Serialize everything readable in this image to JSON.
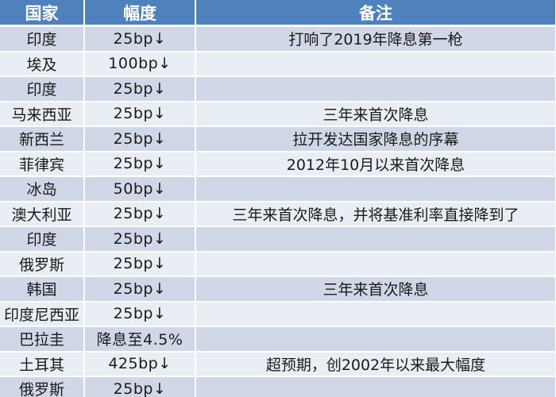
{
  "table": {
    "headers": {
      "country": "国家",
      "range": "幅度",
      "note": "备注"
    },
    "rows": [
      {
        "country": "印度",
        "range": "25bp↓",
        "note": "打响了2019年降息第一枪"
      },
      {
        "country": "埃及",
        "range": "100bp↓",
        "note": ""
      },
      {
        "country": "印度",
        "range": "25bp↓",
        "note": ""
      },
      {
        "country": "马来西亚",
        "range": "25bp↓",
        "note": "三年来首次降息"
      },
      {
        "country": "新西兰",
        "range": "25bp↓",
        "note": "拉开发达国家降息的序幕"
      },
      {
        "country": "菲律宾",
        "range": "25bp↓",
        "note": "2012年10月以来首次降息"
      },
      {
        "country": "冰岛",
        "range": "50bp↓",
        "note": ""
      },
      {
        "country": "澳大利亚",
        "range": "25bp↓",
        "note": "三年来首次降息，并将基准利率直接降到了"
      },
      {
        "country": "印度",
        "range": "25bp↓",
        "note": ""
      },
      {
        "country": "俄罗斯",
        "range": "25bp↓",
        "note": ""
      },
      {
        "country": "韩国",
        "range": "25bp↓",
        "note": "三年来首次降息"
      },
      {
        "country": "印度尼西亚",
        "range": "25bp↓",
        "note": ""
      },
      {
        "country": "巴拉圭",
        "range": "降息至4.5%",
        "note": ""
      },
      {
        "country": "土耳其",
        "range": "425bp↓",
        "note": "超预期，创2002年以来最大幅度"
      },
      {
        "country": "俄罗斯",
        "range": "25bp↓",
        "note": ""
      }
    ]
  },
  "colors": {
    "header_bg": "#4f81bd",
    "row_odd": "#d0d8e8",
    "row_even": "#e9edf4"
  }
}
